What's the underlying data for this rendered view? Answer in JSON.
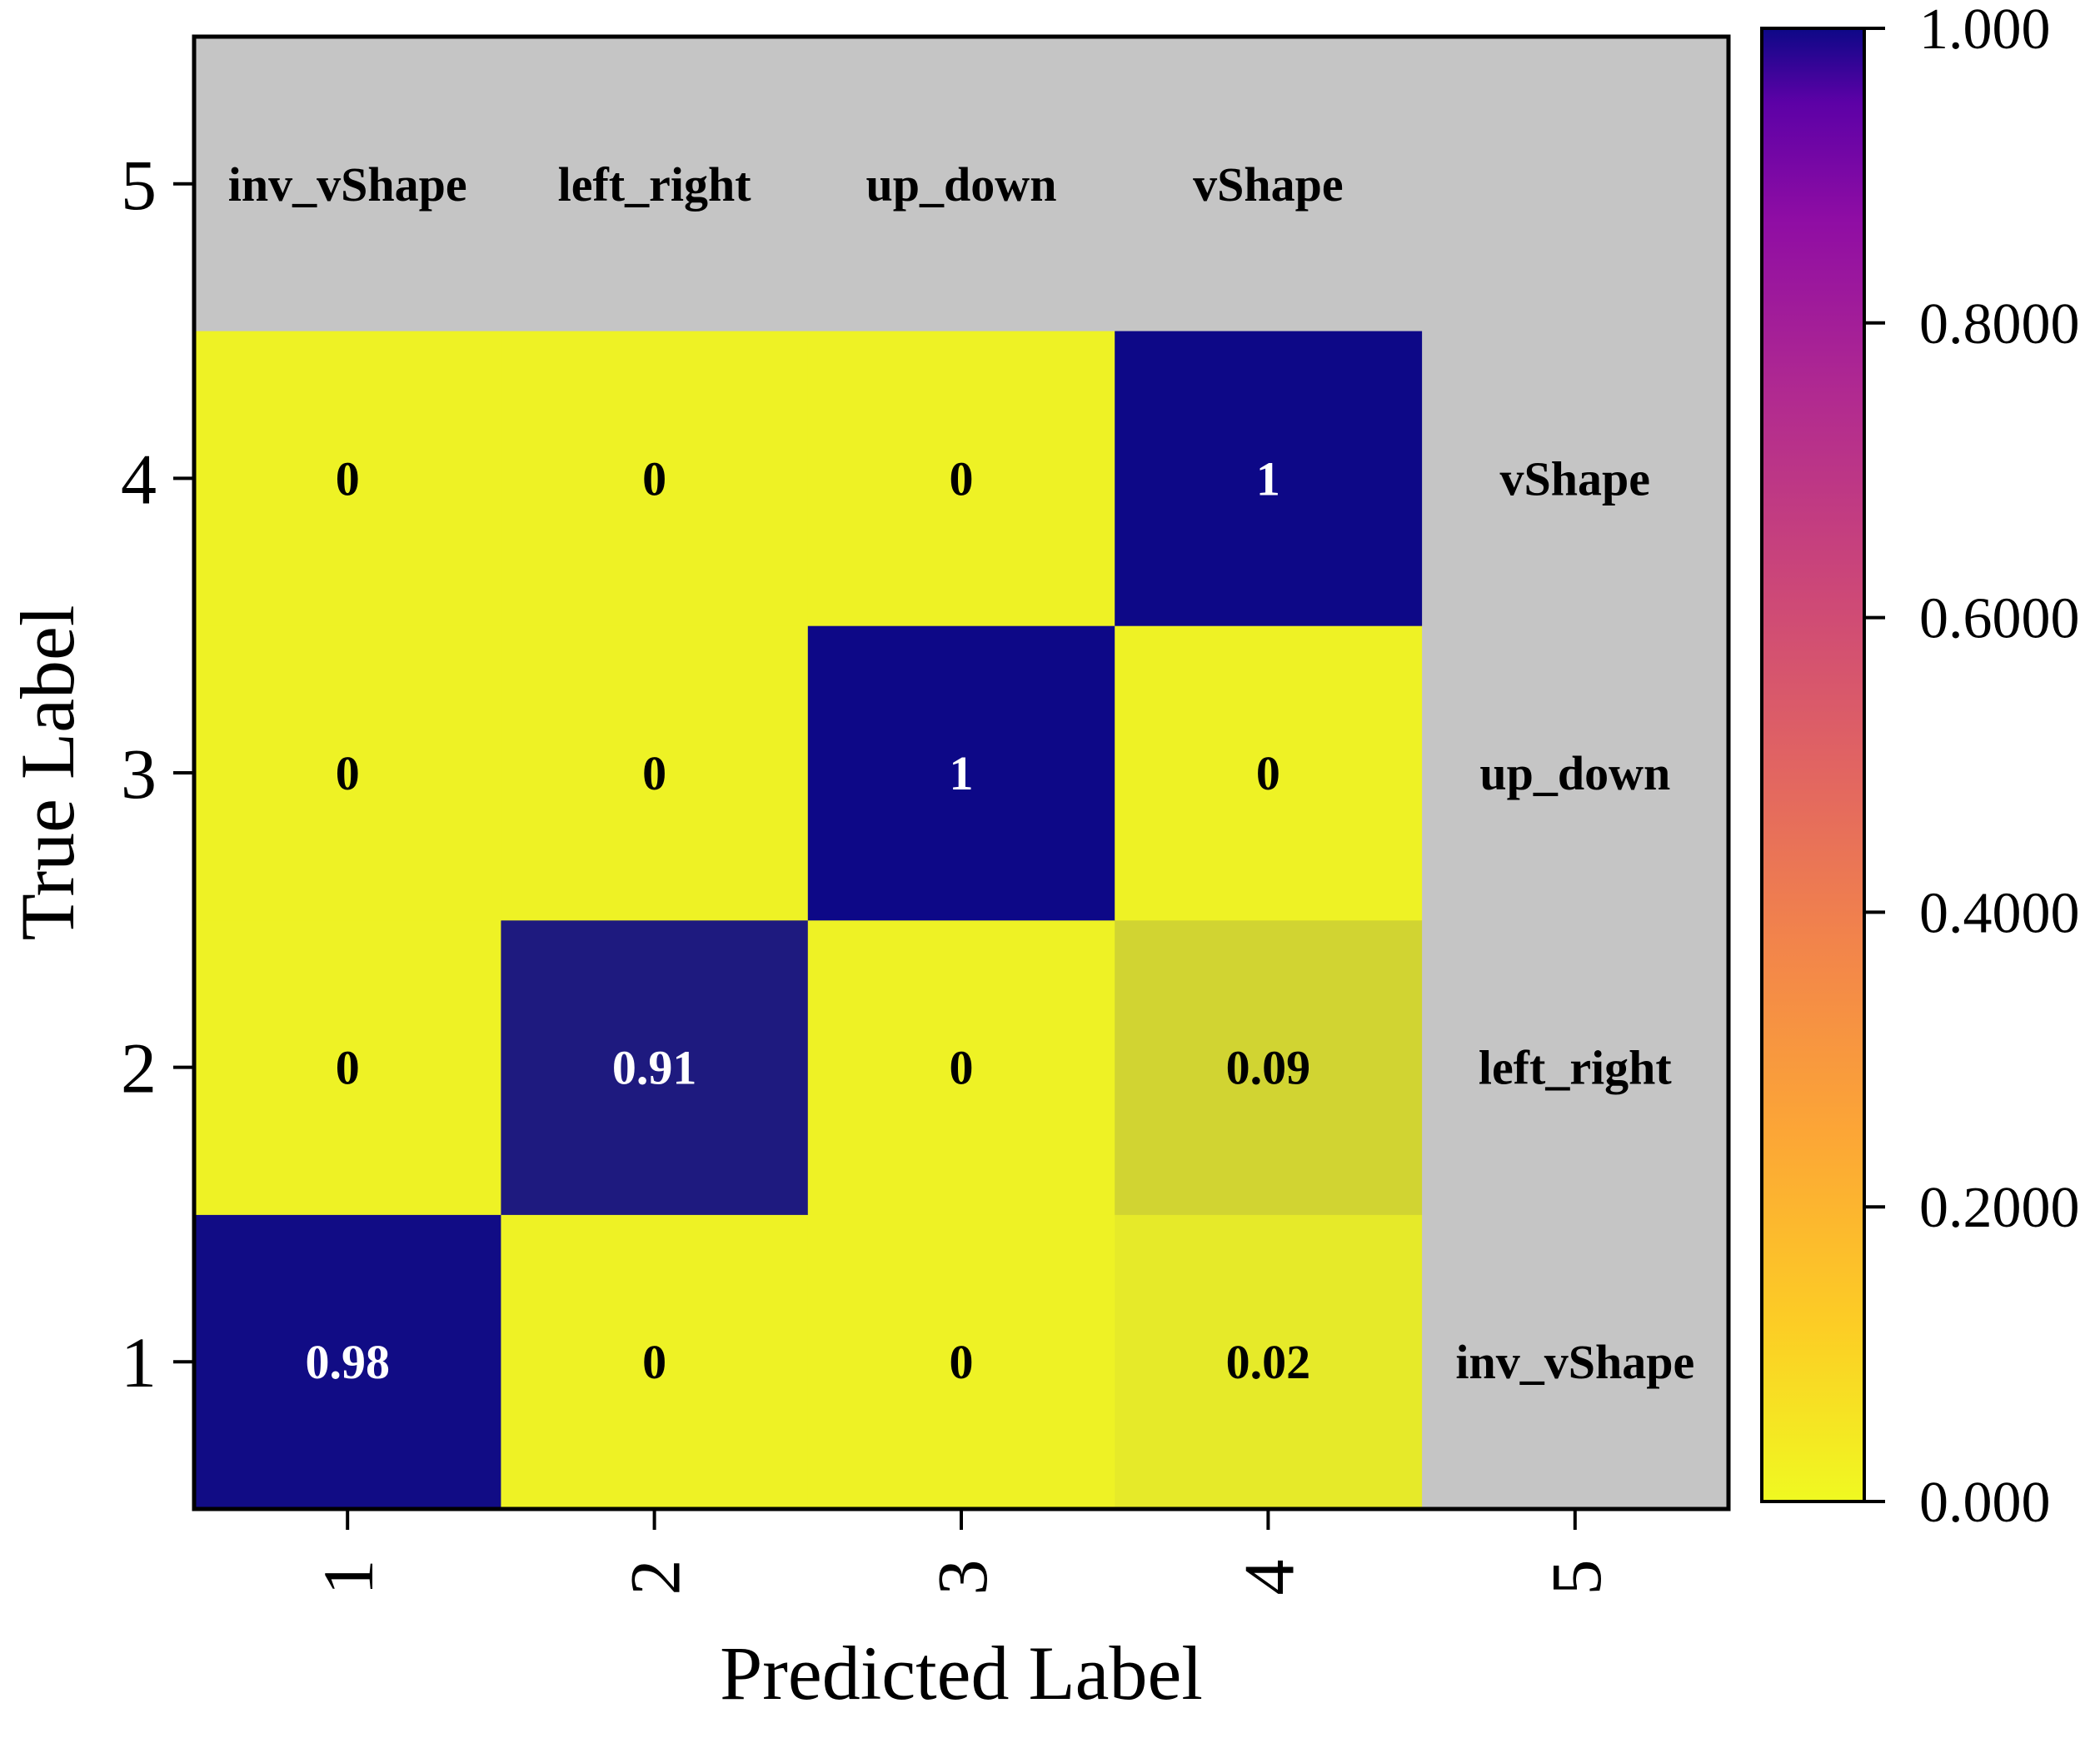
{
  "chart_data": {
    "type": "heatmap",
    "xlabel": "Predicted Label",
    "ylabel": "True Label",
    "x_ticks": [
      "1",
      "2",
      "3",
      "4",
      "5"
    ],
    "y_ticks": [
      "1",
      "2",
      "3",
      "4",
      "5"
    ],
    "class_labels": [
      "inv_vShape",
      "left_right",
      "up_down",
      "vShape"
    ],
    "rows": [
      {
        "true": "1",
        "values": [
          0.98,
          0,
          0,
          0.02
        ],
        "labels": [
          "0.98",
          "0",
          "0",
          "0.02"
        ]
      },
      {
        "true": "2",
        "values": [
          0,
          0.91,
          0,
          0.09
        ],
        "labels": [
          "0",
          "0.91",
          "0",
          "0.09"
        ]
      },
      {
        "true": "3",
        "values": [
          0,
          0,
          1,
          0
        ],
        "labels": [
          "0",
          "0",
          "1",
          "0"
        ]
      },
      {
        "true": "4",
        "values": [
          0,
          0,
          0,
          1
        ],
        "labels": [
          "0",
          "0",
          "0",
          "1"
        ]
      }
    ],
    "colorbar": {
      "range": [
        0,
        1
      ],
      "ticks": [
        {
          "value": 0,
          "label": "0.000"
        },
        {
          "value": 0.2,
          "label": "0.2000"
        },
        {
          "value": 0.4,
          "label": "0.4000"
        },
        {
          "value": 0.6,
          "label": "0.6000"
        },
        {
          "value": 0.8,
          "label": "0.8000"
        },
        {
          "value": 1,
          "label": "1.000"
        }
      ],
      "colormap": "plasma-reversed"
    },
    "colors": {
      "background": "#c5c5c5",
      "low": "#eef225",
      "high": "#0d0887"
    }
  }
}
